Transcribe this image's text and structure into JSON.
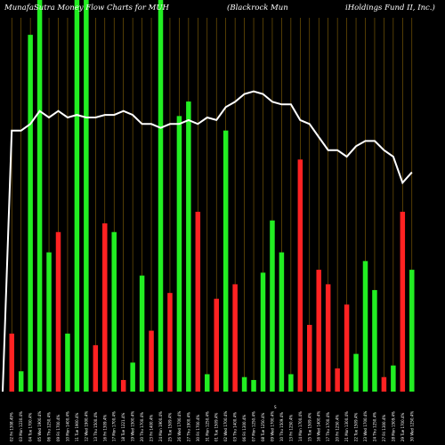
{
  "chart_data": {
    "type": "bar",
    "title_parts": [
      "MunafaSutra  Money Flow  Charts for MUH",
      "(Blackrock Mun",
      "iHoldings Fund II,  Inc.)"
    ],
    "axis_marker": "S",
    "series": [
      {
        "name": "Volume",
        "values": [
          2.0,
          0.7,
          12.3,
          13.5,
          4.8,
          5.5,
          2.0,
          13.5,
          13.5,
          1.6,
          5.8,
          5.5,
          0.4,
          1.0,
          4.0,
          2.1,
          13.5,
          3.4,
          9.5,
          10.0,
          6.2,
          0.6,
          3.2,
          9.0,
          3.7,
          0.5,
          0.4,
          4.1,
          5.9,
          4.8,
          0.6,
          8.0,
          2.3,
          4.2,
          3.7,
          0.8,
          3.0,
          1.3,
          4.5,
          3.5,
          0.5,
          0.9,
          6.2,
          4.2
        ]
      },
      {
        "name": "Price",
        "values": [
          8.5,
          8.5,
          8.55,
          8.65,
          8.6,
          8.65,
          8.6,
          8.62,
          8.6,
          8.6,
          8.62,
          8.62,
          8.65,
          8.62,
          8.55,
          8.55,
          8.52,
          8.55,
          8.55,
          8.58,
          8.55,
          8.6,
          8.58,
          8.68,
          8.72,
          8.78,
          8.8,
          8.78,
          8.72,
          8.7,
          8.7,
          8.58,
          8.55,
          8.45,
          8.35,
          8.35,
          8.3,
          8.38,
          8.42,
          8.42,
          8.35,
          8.3,
          8.1,
          8.18
        ]
      }
    ],
    "bar_colors": [
      "red",
      "green",
      "green",
      "green",
      "green",
      "red",
      "green",
      "green",
      "green",
      "red",
      "red",
      "green",
      "red",
      "green",
      "green",
      "red",
      "green",
      "red",
      "green",
      "green",
      "red",
      "green",
      "red",
      "green",
      "red",
      "green",
      "green",
      "green",
      "green",
      "green",
      "green",
      "red",
      "red",
      "red",
      "red",
      "red",
      "red",
      "green",
      "green",
      "green",
      "red",
      "green",
      "red",
      "green"
    ],
    "categories": [
      "02 Fri 1308.49%",
      "03 Mon 1230.4%",
      "04 Tue 1700.4%",
      "05 Wed 1900.4%",
      "06 Thu 1250.4%",
      "09 Fri 1700.4%",
      "10 Mon 1400.4%",
      "11 Tue 1900.4%",
      "12 Wed 1900.4%",
      "13 Thu 1500.4%",
      "16 Fri 1309.4%",
      "17 Mon 1700.4%",
      "18 Tue 1221.4%",
      "19 Wed 1500.4%",
      "20 Thu 1700.4%",
      "23 Fri 1400.4%",
      "24 Mon 1900.4%",
      "25 Tue 1509.4%",
      "26 Wed 1700.4%",
      "27 Thu 1900.4%",
      "30 Fri 1700.4%",
      "31 Mon 1250.4%",
      "01 Tue 1509.4%",
      "02 Wed 1700.4%",
      "03 Thu 1400.4%",
      "06 Fri 1300.4%",
      "07 Mon 1250.4%",
      "08 Tue 1250.4%",
      "09 Wed 1700.4%",
      "10 Thu 1509.4%",
      "13 Fri 1250.4%",
      "14 Mon 1700.4%",
      "15 Tue 1509.4%",
      "16 Wed 1400.4%",
      "17 Thu 1700.4%",
      "20 Fri 1250.4%",
      "21 Mon 1300.4%",
      "22 Tue 1509.4%",
      "23 Wed 1700.4%",
      "24 Thu 1250.4%",
      "27 Fri 1300.4%",
      "28 Mon 1509.4%",
      "29 Tue 1700.4%",
      "30 Wed 1250.4%"
    ],
    "ylim": [
      0,
      13.5
    ],
    "price_range": [
      6.5,
      9.5
    ],
    "colors": {
      "background": "#000000",
      "green": "#22ee22",
      "red": "#ff2222",
      "grid": "#b8860b",
      "line": "#ffffff",
      "text": "#ffffff"
    }
  }
}
